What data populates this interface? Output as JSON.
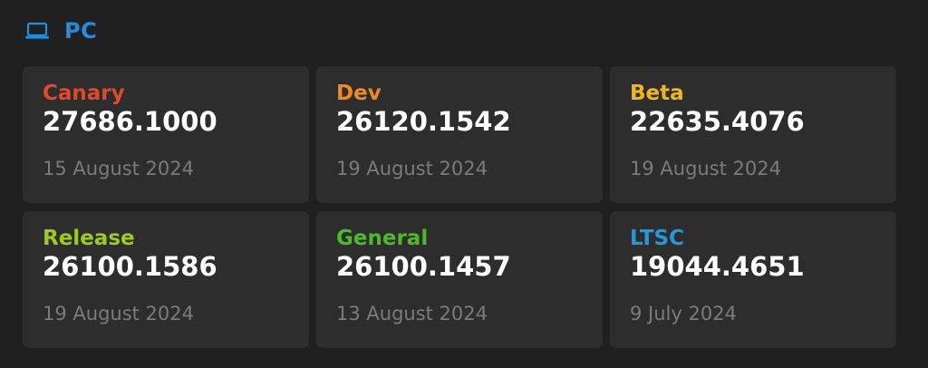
{
  "section": {
    "title": "PC",
    "icon": "laptop-icon",
    "accent": "#1a8fe3"
  },
  "channels": [
    {
      "label": "Canary",
      "version": "27686.1000",
      "date": "15 August 2024",
      "color": "#e0492a"
    },
    {
      "label": "Dev",
      "version": "26120.1542",
      "date": "19 August 2024",
      "color": "#f08a1c"
    },
    {
      "label": "Beta",
      "version": "22635.4076",
      "date": "19 August 2024",
      "color": "#f0b61c"
    },
    {
      "label": "Release",
      "version": "26100.1586",
      "date": "19 August 2024",
      "color": "#9ccc1a"
    },
    {
      "label": "General",
      "version": "26100.1457",
      "date": "13 August 2024",
      "color": "#4cbb26"
    },
    {
      "label": "LTSC",
      "version": "19044.4651",
      "date": "9 July 2024",
      "color": "#1e9be0"
    }
  ]
}
